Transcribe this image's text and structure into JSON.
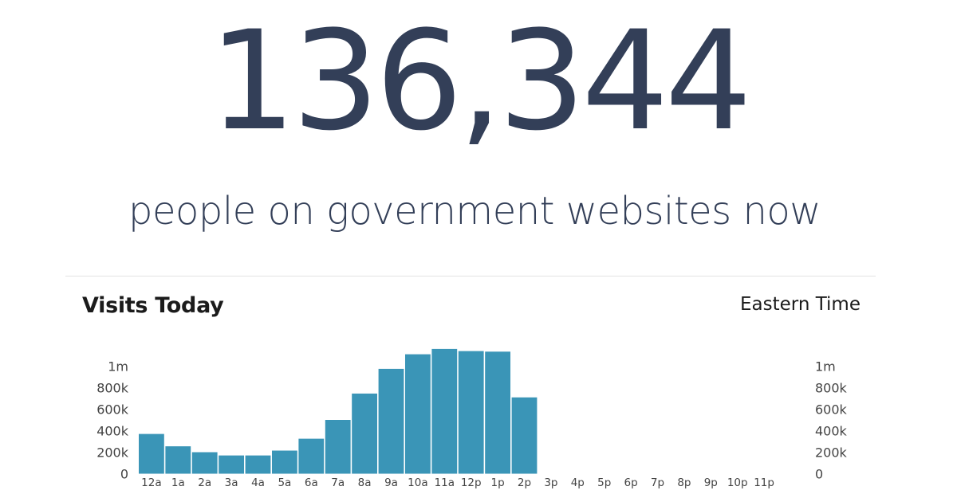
{
  "headline": {
    "count": "136,344",
    "caption": "people on government websites now"
  },
  "section": {
    "title": "Visits Today",
    "timezone": "Eastern Time"
  },
  "colors": {
    "text": "#333f58",
    "bar": "#3a95b7",
    "axis_text": "#444444"
  },
  "chart_data": {
    "type": "bar",
    "title": "Visits Today",
    "xlabel": "",
    "ylabel": "",
    "ylim": [
      0,
      1150000
    ],
    "y_ticks": [
      {
        "value": 0,
        "label": "0"
      },
      {
        "value": 200000,
        "label": "200k"
      },
      {
        "value": 400000,
        "label": "400k"
      },
      {
        "value": 600000,
        "label": "600k"
      },
      {
        "value": 800000,
        "label": "800k"
      },
      {
        "value": 1000000,
        "label": "1m"
      }
    ],
    "y_axis_sides": [
      "left",
      "right"
    ],
    "grid": false,
    "categories": [
      "12a",
      "1a",
      "2a",
      "3a",
      "4a",
      "5a",
      "6a",
      "7a",
      "8a",
      "9a",
      "10a",
      "11a",
      "12p",
      "1p",
      "2p",
      "3p",
      "4p",
      "5p",
      "6p",
      "7p",
      "8p",
      "9p",
      "10p",
      "11p"
    ],
    "values": [
      370000,
      255000,
      200000,
      170000,
      170000,
      215000,
      325000,
      500000,
      745000,
      975000,
      1110000,
      1160000,
      1140000,
      1135000,
      710000,
      null,
      null,
      null,
      null,
      null,
      null,
      null,
      null,
      null
    ]
  }
}
